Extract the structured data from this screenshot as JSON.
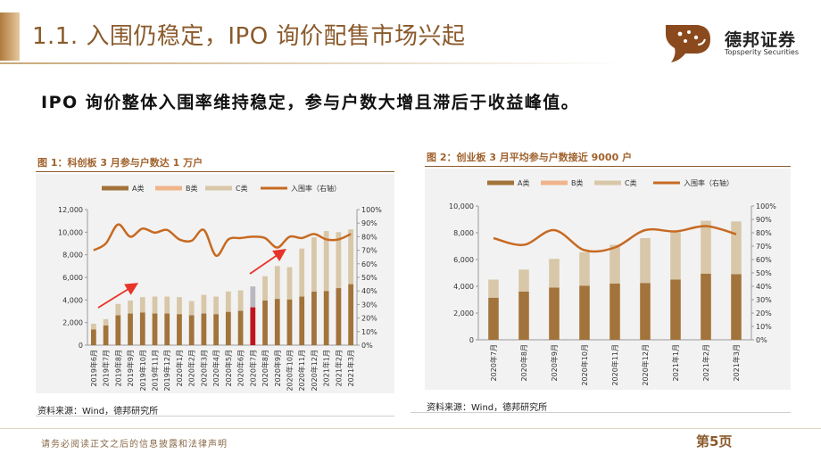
{
  "header": {
    "title": "1.1. 入围仍稳定，IPO 询价配售市场兴起",
    "logo_cn": "德邦证券",
    "logo_en": "Topsperity Securities",
    "logo_icon": "leopard-logo-icon"
  },
  "subtitle": "IPO 询价整体入围率维持稳定，参与户数大增且滞后于收益峰值。",
  "colors": {
    "a": "#a2733a",
    "b": "#f0b48a",
    "c": "#d8c7a8",
    "line": "#c76a22",
    "highlight": "#c0141c",
    "highlight_c": "#b8b8c0",
    "arrow": "#e8332a"
  },
  "figure1": {
    "title": "图 1：科创板 3 月参与户数达 1 万户",
    "source": "资料来源：Wind，德邦研究所"
  },
  "figure2": {
    "title": "图 2：创业板 3 月平均参与户数接近 9000 户",
    "source": "资料来源：Wind，德邦研究所"
  },
  "footer": {
    "disclaimer": "请务必阅读正文之后的信息披露和法律声明",
    "page": "第5页"
  },
  "chart_data": [
    {
      "type": "bar",
      "stacked": true,
      "title": "图 1：科创板 3 月参与户数达 1 万户",
      "categories": [
        "2019年6月",
        "2019年7月",
        "2019年8月",
        "2019年9月",
        "2019年10月",
        "2019年11月",
        "2019年12月",
        "2020年1月",
        "2020年2月",
        "2020年3月",
        "2020年4月",
        "2020年5月",
        "2020年6月",
        "2020年7月",
        "2020年8月",
        "2020年9月",
        "2020年10月",
        "2020年11月",
        "2020年12月",
        "2021年1月",
        "2021年2月",
        "2021年3月"
      ],
      "series": [
        {
          "name": "A类",
          "values": [
            1400,
            1750,
            2650,
            2800,
            2900,
            2800,
            2800,
            2750,
            2650,
            2800,
            2750,
            2950,
            3050,
            3350,
            3950,
            4100,
            4050,
            4300,
            4750,
            4800,
            5050,
            5400
          ]
        },
        {
          "name": "B类",
          "values": [
            0,
            0,
            0,
            0,
            0,
            0,
            0,
            0,
            0,
            0,
            0,
            0,
            0,
            0,
            0,
            0,
            0,
            0,
            0,
            0,
            0,
            0
          ]
        },
        {
          "name": "C类",
          "values": [
            500,
            550,
            1000,
            1150,
            1350,
            1500,
            1500,
            1500,
            1250,
            1650,
            1550,
            1800,
            1800,
            1850,
            2150,
            2900,
            2850,
            4250,
            4800,
            5300,
            4950,
            4850
          ]
        },
        {
          "name": "入围率（右轴）",
          "axis": "right",
          "type": "line",
          "values": [
            70,
            75,
            89,
            80,
            86,
            83,
            85,
            78,
            77,
            85,
            66,
            78,
            79,
            80,
            79,
            72,
            80,
            79,
            82,
            78,
            78,
            82
          ]
        }
      ],
      "highlight_index": 13,
      "ylim": [
        0,
        12000
      ],
      "yticks": [
        "0",
        "2,000",
        "4,000",
        "6,000",
        "8,000",
        "10,000",
        "12,000"
      ],
      "y2lim": [
        0,
        100
      ],
      "y2ticks": [
        "0%",
        "10%",
        "20%",
        "30%",
        "40%",
        "50%",
        "60%",
        "70%",
        "80%",
        "90%",
        "100%"
      ],
      "legend_position": "top"
    },
    {
      "type": "bar",
      "stacked": true,
      "title": "图 2：创业板 3 月平均参与户数接近 9000 户",
      "categories": [
        "2020年7月",
        "2020年8月",
        "2020年9月",
        "2020年10月",
        "2020年11月",
        "2020年12月",
        "2021年1月",
        "2021年2月",
        "2021年3月"
      ],
      "series": [
        {
          "name": "A类",
          "values": [
            3150,
            3600,
            3900,
            4050,
            4200,
            4250,
            4500,
            4950,
            4900
          ]
        },
        {
          "name": "B类",
          "values": [
            0,
            0,
            0,
            0,
            0,
            0,
            0,
            0,
            0
          ]
        },
        {
          "name": "C类",
          "values": [
            1350,
            1650,
            2150,
            2500,
            2900,
            3350,
            3550,
            3950,
            3950
          ]
        },
        {
          "name": "入围率（右轴）",
          "axis": "right",
          "type": "line",
          "values": [
            76,
            71,
            82,
            67,
            69,
            82,
            81,
            85,
            79
          ]
        }
      ],
      "ylim": [
        0,
        10000
      ],
      "yticks": [
        "0",
        "2,000",
        "4,000",
        "6,000",
        "8,000",
        "10,000"
      ],
      "y2lim": [
        0,
        100
      ],
      "y2ticks": [
        "0%",
        "10%",
        "20%",
        "30%",
        "40%",
        "50%",
        "60%",
        "70%",
        "80%",
        "90%",
        "100%"
      ],
      "legend_position": "top"
    }
  ]
}
